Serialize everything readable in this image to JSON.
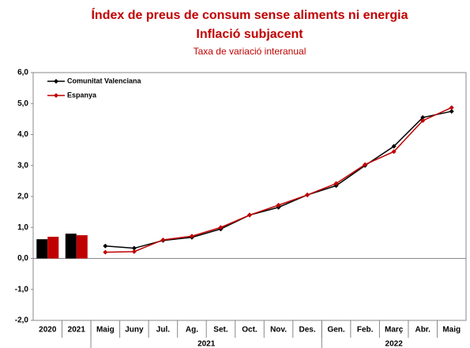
{
  "chart_data": {
    "type": "bar-line",
    "title": "Índex de preus de consum sense aliments ni energia",
    "subtitle": "Inflació subjacent",
    "caption": "Taxa de variació interanual",
    "categories": [
      "2020",
      "2021",
      "Maig",
      "Juny",
      "Jul.",
      "Ag.",
      "Set.",
      "Oct.",
      "Nov.",
      "Des.",
      "Gen.",
      "Feb.",
      "Març",
      "Abr.",
      "Maig"
    ],
    "category_groups": [
      {
        "label": "2021",
        "from": 2,
        "to": 9
      },
      {
        "label": "2022",
        "from": 10,
        "to": 14
      }
    ],
    "series": [
      {
        "name": "Comunitat Valenciana",
        "color": "#000000",
        "bar_values": [
          0.62,
          0.8,
          null,
          null,
          null,
          null,
          null,
          null,
          null,
          null,
          null,
          null,
          null,
          null,
          null
        ],
        "values": [
          null,
          null,
          0.4,
          0.33,
          0.58,
          0.68,
          0.95,
          1.4,
          1.65,
          2.05,
          2.35,
          3.0,
          3.62,
          4.55,
          4.75
        ]
      },
      {
        "name": "Espanya",
        "color": "#c00000",
        "bar_values": [
          0.7,
          0.75,
          null,
          null,
          null,
          null,
          null,
          null,
          null,
          null,
          null,
          null,
          null,
          null,
          null
        ],
        "values": [
          null,
          null,
          0.2,
          0.22,
          0.6,
          0.72,
          1.0,
          1.4,
          1.72,
          2.05,
          2.42,
          3.03,
          3.45,
          4.45,
          4.87
        ]
      }
    ],
    "ylim": [
      -2,
      6
    ],
    "yticks": [
      {
        "value": -2,
        "label": "-2,0"
      },
      {
        "value": -1,
        "label": "-1,0"
      },
      {
        "value": 0,
        "label": "0,0"
      },
      {
        "value": 1,
        "label": "1,0"
      },
      {
        "value": 2,
        "label": "2,0"
      },
      {
        "value": 3,
        "label": "3,0"
      },
      {
        "value": 4,
        "label": "4,0"
      },
      {
        "value": 5,
        "label": "5,0"
      },
      {
        "value": 6,
        "label": "6,0"
      }
    ],
    "legend": "upper left"
  }
}
